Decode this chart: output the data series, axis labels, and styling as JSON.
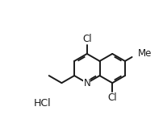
{
  "background_color": "#ffffff",
  "line_color": "#1a1a1a",
  "line_width": 1.4,
  "font_size": 8.5,
  "hcl_label": "HCl",
  "figsize": [
    2.03,
    1.48
  ],
  "dpi": 100
}
